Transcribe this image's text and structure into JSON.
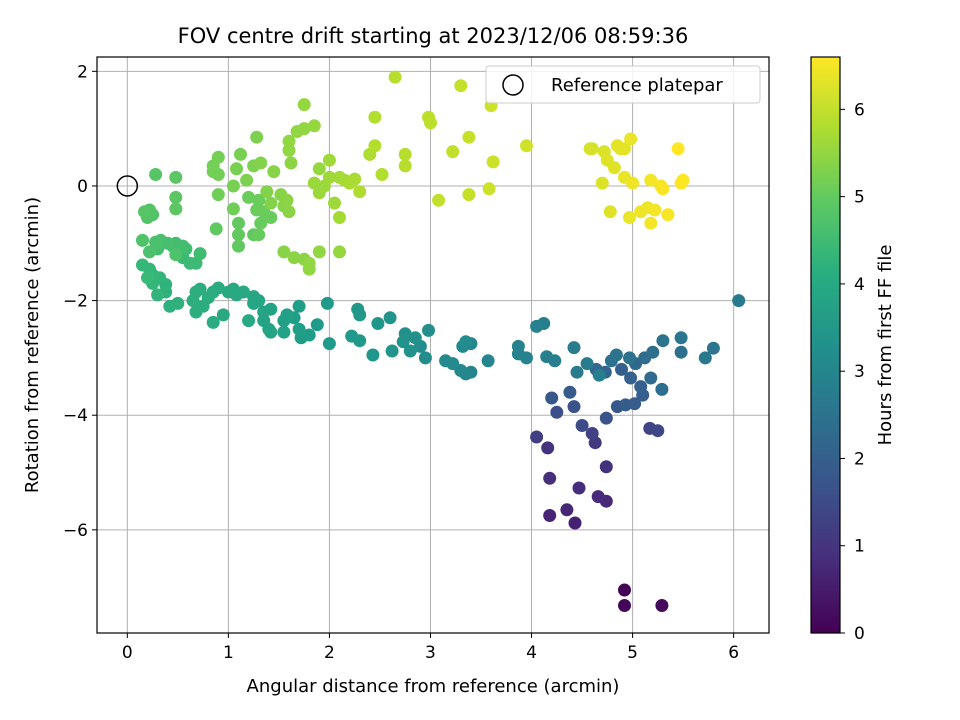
{
  "chart_data": {
    "type": "scatter",
    "title": "FOV centre drift starting at 2023/12/06 08:59:36",
    "xlabel": "Angular distance from reference (arcmin)",
    "ylabel": "Rotation from reference (arcmin)",
    "xlim": [
      -0.3,
      6.35
    ],
    "ylim": [
      -7.8,
      2.25
    ],
    "xticks": [
      0,
      1,
      2,
      3,
      4,
      5,
      6
    ],
    "yticks": [
      -6,
      -4,
      -2,
      0,
      2
    ],
    "grid": true,
    "legend": {
      "label": "Reference platepar",
      "placement": "top-right",
      "marker": "hollow-circle"
    },
    "reference_point": {
      "x": 0,
      "y": 0
    },
    "colorbar": {
      "label": "Hours from first FF file",
      "range": [
        0,
        6.6
      ],
      "ticks": [
        0,
        1,
        2,
        3,
        4,
        5,
        6
      ],
      "colormap": "viridis"
    },
    "points": [
      [
        4.92,
        -7.05,
        0.05
      ],
      [
        4.92,
        -7.32,
        0.1
      ],
      [
        5.29,
        -7.32,
        0.15
      ],
      [
        4.43,
        -5.88,
        0.6
      ],
      [
        4.18,
        -5.75,
        0.65
      ],
      [
        4.35,
        -5.65,
        0.7
      ],
      [
        4.74,
        -5.5,
        0.75
      ],
      [
        4.66,
        -5.42,
        0.8
      ],
      [
        4.47,
        -5.27,
        0.85
      ],
      [
        4.18,
        -5.1,
        0.9
      ],
      [
        4.74,
        -4.9,
        0.95
      ],
      [
        4.16,
        -4.57,
        1.0
      ],
      [
        4.63,
        -4.48,
        1.1
      ],
      [
        4.05,
        -4.38,
        1.2
      ],
      [
        4.6,
        -4.32,
        1.3
      ],
      [
        5.17,
        -4.23,
        1.35
      ],
      [
        5.25,
        -4.27,
        1.4
      ],
      [
        4.5,
        -4.18,
        1.5
      ],
      [
        4.25,
        -3.95,
        1.6
      ],
      [
        4.42,
        -3.85,
        1.65
      ],
      [
        4.74,
        -4.05,
        1.7
      ],
      [
        4.85,
        -3.85,
        1.75
      ],
      [
        4.2,
        -3.7,
        1.8
      ],
      [
        4.38,
        -3.6,
        1.85
      ],
      [
        4.93,
        -3.82,
        1.9
      ],
      [
        5.02,
        -3.8,
        1.92
      ],
      [
        5.1,
        -3.65,
        1.95
      ],
      [
        5.08,
        -3.5,
        2.0
      ],
      [
        4.89,
        -3.2,
        2.0
      ],
      [
        4.98,
        -3.35,
        2.05
      ],
      [
        4.73,
        -3.25,
        2.1
      ],
      [
        4.64,
        -3.2,
        2.15
      ],
      [
        5.03,
        -3.1,
        2.2
      ],
      [
        5.18,
        -3.35,
        2.25
      ],
      [
        5.12,
        -3.0,
        2.3
      ],
      [
        5.29,
        -3.55,
        2.35
      ],
      [
        5.48,
        -2.9,
        2.4
      ],
      [
        5.2,
        -2.9,
        2.4
      ],
      [
        4.79,
        -3.05,
        2.45
      ],
      [
        4.84,
        -2.95,
        2.5
      ],
      [
        4.97,
        -3.0,
        2.5
      ],
      [
        5.3,
        -2.7,
        2.55
      ],
      [
        5.48,
        -2.65,
        2.6
      ],
      [
        5.8,
        -2.83,
        2.6
      ],
      [
        5.72,
        -3.0,
        2.65
      ],
      [
        6.05,
        -2.0,
        2.7
      ],
      [
        4.45,
        -3.25,
        2.7
      ],
      [
        4.42,
        -2.82,
        2.75
      ],
      [
        4.55,
        -3.1,
        2.75
      ],
      [
        4.67,
        -3.3,
        2.8
      ],
      [
        4.23,
        -3.05,
        2.8
      ],
      [
        4.15,
        -2.98,
        2.85
      ],
      [
        4.12,
        -2.4,
        2.85
      ],
      [
        4.05,
        -2.45,
        2.9
      ],
      [
        3.95,
        -3.0,
        2.9
      ],
      [
        3.87,
        -2.8,
        2.95
      ],
      [
        3.87,
        -2.93,
        2.95
      ],
      [
        3.57,
        -3.05,
        3.0
      ],
      [
        3.4,
        -3.25,
        3.0
      ],
      [
        3.35,
        -3.28,
        3.05
      ],
      [
        3.4,
        -2.75,
        3.05
      ],
      [
        3.32,
        -2.8,
        3.1
      ],
      [
        3.3,
        -3.22,
        3.1
      ],
      [
        3.22,
        -3.1,
        3.15
      ],
      [
        3.15,
        -3.05,
        3.15
      ],
      [
        3.35,
        -2.72,
        3.2
      ],
      [
        2.95,
        -3.0,
        3.2
      ],
      [
        2.98,
        -2.52,
        3.25
      ],
      [
        2.9,
        -2.8,
        3.25
      ],
      [
        2.85,
        -2.65,
        3.3
      ],
      [
        2.75,
        -2.58,
        3.3
      ],
      [
        2.73,
        -2.72,
        3.35
      ],
      [
        2.8,
        -2.88,
        3.35
      ],
      [
        2.62,
        -2.88,
        3.4
      ],
      [
        2.6,
        -2.3,
        3.4
      ],
      [
        2.48,
        -2.4,
        3.45
      ],
      [
        2.43,
        -2.95,
        3.45
      ],
      [
        2.3,
        -2.7,
        3.5
      ],
      [
        2.3,
        -2.25,
        3.5
      ],
      [
        2.28,
        -2.15,
        3.5
      ],
      [
        2.22,
        -2.62,
        3.55
      ],
      [
        2.0,
        -2.75,
        3.55
      ],
      [
        1.98,
        -2.05,
        3.6
      ],
      [
        1.88,
        -2.42,
        3.6
      ],
      [
        1.8,
        -2.6,
        3.65
      ],
      [
        1.72,
        -2.65,
        3.65
      ],
      [
        1.7,
        -2.5,
        3.7
      ],
      [
        1.7,
        -2.1,
        3.7
      ],
      [
        1.65,
        -2.3,
        3.7
      ],
      [
        1.58,
        -2.25,
        3.75
      ],
      [
        1.55,
        -2.35,
        3.75
      ],
      [
        1.55,
        -2.55,
        3.8
      ],
      [
        1.42,
        -2.15,
        3.8
      ],
      [
        1.4,
        -2.5,
        3.8
      ],
      [
        1.42,
        -2.55,
        3.85
      ],
      [
        1.35,
        -2.2,
        3.85
      ],
      [
        1.35,
        -2.35,
        3.85
      ],
      [
        1.3,
        -2.0,
        3.9
      ],
      [
        1.25,
        -1.93,
        3.9
      ],
      [
        1.25,
        -2.05,
        3.9
      ],
      [
        1.2,
        -2.35,
        3.95
      ],
      [
        1.15,
        -1.85,
        3.95
      ],
      [
        1.08,
        -1.9,
        3.95
      ],
      [
        1.05,
        -1.8,
        4.0
      ],
      [
        1.0,
        -1.85,
        4.0
      ],
      [
        0.95,
        -2.25,
        4.0
      ],
      [
        0.9,
        -1.78,
        4.05
      ],
      [
        0.85,
        -1.85,
        4.05
      ],
      [
        0.85,
        -2.38,
        4.05
      ],
      [
        0.8,
        -1.95,
        4.1
      ],
      [
        0.75,
        -2.1,
        4.1
      ],
      [
        0.72,
        -1.8,
        4.1
      ],
      [
        0.68,
        -1.85,
        4.15
      ],
      [
        0.68,
        -2.2,
        4.15
      ],
      [
        0.65,
        -2.0,
        4.15
      ],
      [
        0.5,
        -2.05,
        4.2
      ],
      [
        0.42,
        -2.1,
        4.2
      ],
      [
        0.38,
        -1.85,
        4.25
      ],
      [
        0.38,
        -1.72,
        4.25
      ],
      [
        0.3,
        -1.9,
        4.3
      ],
      [
        0.32,
        -1.6,
        4.3
      ],
      [
        0.25,
        -1.7,
        4.35
      ],
      [
        0.25,
        -1.55,
        4.35
      ],
      [
        0.22,
        -1.45,
        4.4
      ],
      [
        0.15,
        -1.38,
        4.4
      ],
      [
        0.2,
        -1.6,
        4.45
      ],
      [
        0.55,
        -1.25,
        4.45
      ],
      [
        0.62,
        -1.35,
        4.5
      ],
      [
        0.68,
        -1.35,
        4.5
      ],
      [
        0.72,
        -1.18,
        4.55
      ],
      [
        0.58,
        -1.1,
        4.55
      ],
      [
        0.55,
        -1.05,
        4.6
      ],
      [
        0.48,
        -1.0,
        4.6
      ],
      [
        0.45,
        -1.05,
        4.6
      ],
      [
        0.4,
        -1.0,
        4.65
      ],
      [
        0.33,
        -0.95,
        4.65
      ],
      [
        0.3,
        -1.1,
        4.65
      ],
      [
        0.28,
        -0.98,
        4.7
      ],
      [
        0.22,
        -1.15,
        4.7
      ],
      [
        0.15,
        -0.95,
        4.75
      ],
      [
        0.48,
        -1.2,
        4.75
      ],
      [
        0.25,
        -0.5,
        4.8
      ],
      [
        0.22,
        -0.42,
        4.8
      ],
      [
        0.2,
        -0.55,
        4.8
      ],
      [
        0.17,
        -0.45,
        4.85
      ],
      [
        0.28,
        0.2,
        4.85
      ],
      [
        0.48,
        0.15,
        4.9
      ],
      [
        0.48,
        -0.2,
        4.9
      ],
      [
        0.48,
        -0.4,
        4.9
      ],
      [
        0.88,
        -0.75,
        4.95
      ],
      [
        1.1,
        -1.05,
        4.95
      ],
      [
        1.1,
        -0.85,
        5.0
      ],
      [
        1.1,
        -0.65,
        5.0
      ],
      [
        1.25,
        -0.85,
        5.0
      ],
      [
        1.3,
        -0.85,
        5.05
      ],
      [
        1.32,
        -0.65,
        5.05
      ],
      [
        1.42,
        -0.55,
        5.05
      ],
      [
        1.35,
        -0.45,
        5.1
      ],
      [
        1.3,
        -0.25,
        5.1
      ],
      [
        1.28,
        -0.42,
        5.1
      ],
      [
        1.2,
        -0.2,
        5.1
      ],
      [
        1.05,
        -0.4,
        5.15
      ],
      [
        0.9,
        -0.15,
        5.15
      ],
      [
        0.9,
        0.2,
        5.2
      ],
      [
        0.85,
        0.25,
        5.2
      ],
      [
        0.9,
        0.5,
        5.2
      ],
      [
        0.85,
        0.35,
        5.2
      ],
      [
        1.12,
        0.55,
        5.25
      ],
      [
        1.08,
        0.3,
        5.25
      ],
      [
        1.05,
        0.0,
        5.25
      ],
      [
        1.18,
        0.1,
        5.3
      ],
      [
        1.25,
        0.35,
        5.3
      ],
      [
        1.28,
        0.85,
        5.3
      ],
      [
        1.32,
        0.4,
        5.35
      ],
      [
        1.38,
        -0.1,
        5.35
      ],
      [
        1.42,
        -0.3,
        5.35
      ],
      [
        1.45,
        0.25,
        5.4
      ],
      [
        1.52,
        -0.15,
        5.4
      ],
      [
        1.55,
        -0.35,
        5.4
      ],
      [
        1.58,
        -0.25,
        5.45
      ],
      [
        1.6,
        -0.45,
        5.45
      ],
      [
        1.62,
        0.4,
        5.45
      ],
      [
        1.6,
        0.62,
        5.5
      ],
      [
        1.6,
        0.78,
        5.5
      ],
      [
        1.68,
        0.95,
        5.5
      ],
      [
        1.75,
        1.0,
        5.5
      ],
      [
        1.75,
        1.42,
        5.55
      ],
      [
        1.85,
        1.05,
        5.55
      ],
      [
        1.9,
        0.3,
        5.55
      ],
      [
        1.85,
        0.05,
        5.6
      ],
      [
        1.9,
        -0.12,
        5.6
      ],
      [
        1.95,
        0.0,
        5.6
      ],
      [
        2.0,
        0.45,
        5.65
      ],
      [
        2.0,
        0.15,
        5.65
      ],
      [
        2.05,
        -0.3,
        5.65
      ],
      [
        2.1,
        0.15,
        5.7
      ],
      [
        2.1,
        -0.55,
        5.7
      ],
      [
        2.15,
        0.1,
        5.7
      ],
      [
        2.2,
        0.05,
        5.75
      ],
      [
        2.25,
        0.12,
        5.75
      ],
      [
        1.55,
        -1.15,
        5.4
      ],
      [
        1.65,
        -1.25,
        5.45
      ],
      [
        1.75,
        -1.28,
        5.45
      ],
      [
        1.8,
        -1.45,
        5.5
      ],
      [
        1.8,
        -1.35,
        5.5
      ],
      [
        1.9,
        -1.15,
        5.5
      ],
      [
        2.1,
        -1.15,
        5.55
      ],
      [
        2.3,
        -0.1,
        5.8
      ],
      [
        2.4,
        0.55,
        5.8
      ],
      [
        2.45,
        0.7,
        5.85
      ],
      [
        2.45,
        1.2,
        5.85
      ],
      [
        2.52,
        0.2,
        5.85
      ],
      [
        2.65,
        1.9,
        5.9
      ],
      [
        2.75,
        0.55,
        5.9
      ],
      [
        2.75,
        0.35,
        5.9
      ],
      [
        2.98,
        1.2,
        5.95
      ],
      [
        3.0,
        1.1,
        5.95
      ],
      [
        3.08,
        -0.25,
        6.0
      ],
      [
        3.22,
        0.6,
        6.0
      ],
      [
        3.3,
        1.75,
        6.05
      ],
      [
        3.38,
        0.85,
        6.05
      ],
      [
        3.38,
        -0.15,
        6.05
      ],
      [
        3.58,
        -0.05,
        6.1
      ],
      [
        3.6,
        1.4,
        6.1
      ],
      [
        3.62,
        0.42,
        6.1
      ],
      [
        3.95,
        0.7,
        6.15
      ],
      [
        4.58,
        0.65,
        6.2
      ],
      [
        4.6,
        0.65,
        6.2
      ],
      [
        4.7,
        0.05,
        6.25
      ],
      [
        4.72,
        0.6,
        6.25
      ],
      [
        4.75,
        0.45,
        6.3
      ],
      [
        4.78,
        -0.45,
        6.3
      ],
      [
        4.82,
        0.32,
        6.3
      ],
      [
        4.85,
        0.7,
        6.35
      ],
      [
        4.88,
        0.65,
        6.35
      ],
      [
        4.92,
        0.65,
        6.35
      ],
      [
        4.92,
        0.15,
        6.4
      ],
      [
        4.97,
        -0.55,
        6.4
      ],
      [
        4.98,
        0.82,
        6.4
      ],
      [
        5.0,
        0.05,
        6.45
      ],
      [
        5.08,
        -0.45,
        6.45
      ],
      [
        5.15,
        -0.38,
        6.45
      ],
      [
        5.18,
        0.1,
        6.5
      ],
      [
        5.18,
        -0.65,
        6.5
      ],
      [
        5.22,
        -0.42,
        6.5
      ],
      [
        5.28,
        0.0,
        6.55
      ],
      [
        5.3,
        -0.05,
        6.55
      ],
      [
        5.35,
        -0.5,
        6.55
      ],
      [
        5.45,
        0.65,
        6.6
      ],
      [
        5.48,
        0.05,
        6.6
      ],
      [
        5.5,
        0.1,
        6.6
      ]
    ]
  }
}
